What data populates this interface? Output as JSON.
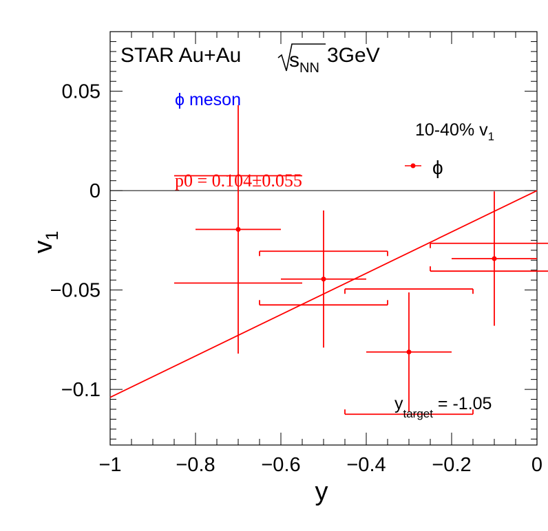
{
  "chart_data": {
    "type": "scatter",
    "xlabel": "y",
    "ylabel": "v",
    "ylabel_sub": "1",
    "xlim": [
      -1.0,
      0.0
    ],
    "ylim": [
      -0.128,
      0.08
    ],
    "x_ticks": [
      -1,
      -0.8,
      -0.6,
      -0.4,
      -0.2,
      0
    ],
    "x_tick_labels": [
      "−1",
      "−0.8",
      "−0.6",
      "−0.4",
      "−0.2",
      "0"
    ],
    "y_ticks": [
      -0.1,
      -0.05,
      0,
      0.05
    ],
    "y_tick_labels": [
      "−0.1",
      "−0.05",
      "0",
      "0.05"
    ],
    "grid": false,
    "series": [
      {
        "name": "ϕ",
        "color": "#ff0000",
        "points": [
          {
            "x": -0.7,
            "y": -0.0195,
            "xerr": 0.1,
            "yerr": 0.0625
          },
          {
            "x": -0.5,
            "y": -0.0445,
            "xerr": 0.1,
            "yerr": 0.0345
          },
          {
            "x": -0.3,
            "y": -0.0812,
            "xerr": 0.1,
            "yerr": 0.03
          },
          {
            "x": -0.1,
            "y": -0.0342,
            "xerr": 0.1,
            "yerr": 0.0338
          }
        ],
        "systematic_boxes": [
          {
            "x1": -0.85,
            "x2": -0.55,
            "y": -0.0465
          },
          {
            "x1": -0.65,
            "x2": -0.35,
            "y": -0.0305,
            "caps": "down"
          },
          {
            "x1": -0.65,
            "x2": -0.35,
            "y": -0.0575,
            "caps": "up"
          },
          {
            "x1": -0.45,
            "x2": -0.15,
            "y": -0.0495,
            "caps": "down"
          },
          {
            "x1": -0.45,
            "x2": -0.15,
            "y": -0.1125,
            "caps": "up"
          },
          {
            "x1": -0.25,
            "x2": 0.05,
            "y": -0.0265,
            "caps": "down"
          },
          {
            "x1": -0.25,
            "x2": 0.05,
            "y": -0.0405,
            "caps": "up"
          },
          {
            "x1": -0.85,
            "x2": -0.55,
            "y": 0.0075
          }
        ]
      }
    ],
    "fit": {
      "slope": 0.104,
      "intercept": 0.0,
      "x_range": [
        -1.0,
        0.0
      ],
      "color": "#ff0000"
    },
    "zero_line": 0
  },
  "annotations": {
    "star_prefix": "STAR Au+Au ",
    "s": "s",
    "nn": "NN",
    "energy": " 3GeV",
    "phi_label": "ϕ meson",
    "centrality": "10-40% v",
    "centrality_sub": "1",
    "legend_entry": "ϕ",
    "fit_result": "p0 = 0.104±0.055",
    "ytarget_y": "y",
    "ytarget_sub": "target",
    "ytarget_val": " = -1.05"
  },
  "colors": {
    "data": "#ff0000",
    "phi_meson_label": "#0000ff",
    "text": "#000000"
  }
}
